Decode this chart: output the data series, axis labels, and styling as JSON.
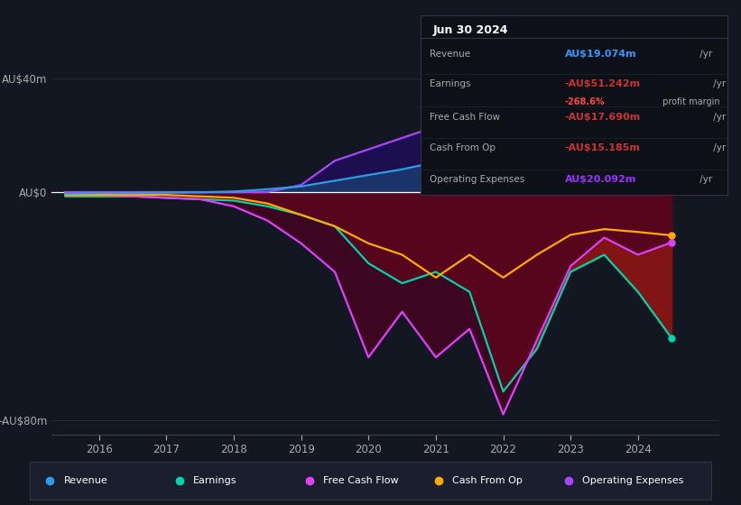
{
  "bg_color": "#131722",
  "grid_color": "#2a2e39",
  "ylim": [
    -85,
    55
  ],
  "xlim": [
    2015.3,
    2025.2
  ],
  "ytick_vals": [
    -80,
    0,
    40
  ],
  "ytick_labels": [
    "-AU$80m",
    "AU$0",
    "AU$40m"
  ],
  "xticks": [
    2016,
    2017,
    2018,
    2019,
    2020,
    2021,
    2022,
    2023,
    2024
  ],
  "revenue_x": [
    2015.5,
    2016.0,
    2016.5,
    2017.0,
    2017.5,
    2018.0,
    2018.5,
    2019.0,
    2019.5,
    2020.0,
    2020.5,
    2021.0,
    2021.5,
    2022.0,
    2022.5,
    2023.0,
    2023.5,
    2024.0,
    2024.5
  ],
  "revenue_y": [
    -0.5,
    -0.3,
    -0.3,
    -0.2,
    -0.1,
    0.2,
    1.0,
    2.0,
    4.0,
    6.0,
    8.0,
    10.5,
    12.5,
    14.5,
    16.0,
    17.5,
    18.5,
    19.0,
    19.074
  ],
  "revenue_color": "#2b9de8",
  "earnings_x": [
    2015.5,
    2016.0,
    2016.5,
    2017.0,
    2017.5,
    2018.0,
    2018.5,
    2019.0,
    2019.5,
    2020.0,
    2020.5,
    2021.0,
    2021.5,
    2022.0,
    2022.5,
    2023.0,
    2023.5,
    2024.0,
    2024.5
  ],
  "earnings_y": [
    -1.5,
    -1.5,
    -1.5,
    -2.0,
    -2.5,
    -3.0,
    -5.0,
    -8.0,
    -12.0,
    -25.0,
    -32.0,
    -28.0,
    -35.0,
    -70.0,
    -55.0,
    -28.0,
    -22.0,
    -35.0,
    -51.242
  ],
  "earnings_color": "#00d4aa",
  "fcf_x": [
    2015.5,
    2016.0,
    2016.5,
    2017.0,
    2017.5,
    2018.0,
    2018.5,
    2019.0,
    2019.5,
    2020.0,
    2020.5,
    2021.0,
    2021.5,
    2022.0,
    2022.5,
    2023.0,
    2023.5,
    2024.0,
    2024.5
  ],
  "fcf_y": [
    -1.0,
    -1.0,
    -1.5,
    -2.0,
    -2.5,
    -5.0,
    -10.0,
    -18.0,
    -28.0,
    -58.0,
    -42.0,
    -58.0,
    -48.0,
    -78.0,
    -52.0,
    -26.0,
    -16.0,
    -22.0,
    -17.69
  ],
  "fcf_color": "#e040fb",
  "cop_x": [
    2015.5,
    2016.0,
    2016.5,
    2017.0,
    2017.5,
    2018.0,
    2018.5,
    2019.0,
    2019.5,
    2020.0,
    2020.5,
    2021.0,
    2021.5,
    2022.0,
    2022.5,
    2023.0,
    2023.5,
    2024.0,
    2024.5
  ],
  "cop_y": [
    -1.0,
    -1.0,
    -1.0,
    -1.0,
    -1.5,
    -2.0,
    -4.0,
    -8.0,
    -12.0,
    -18.0,
    -22.0,
    -30.0,
    -22.0,
    -30.0,
    -22.0,
    -15.0,
    -13.0,
    -14.0,
    -15.185
  ],
  "cop_color": "#ffaa00",
  "opex_x": [
    2015.5,
    2016.0,
    2016.5,
    2017.0,
    2017.5,
    2018.0,
    2018.5,
    2019.0,
    2019.5,
    2020.0,
    2020.5,
    2021.0,
    2021.5,
    2022.0,
    2022.5,
    2023.0,
    2023.5,
    2024.0,
    2024.5
  ],
  "opex_y": [
    0.0,
    0.0,
    0.0,
    0.0,
    0.0,
    0.0,
    0.0,
    2.5,
    11.0,
    15.0,
    19.0,
    23.0,
    26.0,
    31.0,
    37.0,
    44.0,
    38.0,
    28.0,
    20.092
  ],
  "opex_color": "#aa44ff",
  "legend": [
    {
      "label": "Revenue",
      "color": "#2b9de8"
    },
    {
      "label": "Earnings",
      "color": "#00d4aa"
    },
    {
      "label": "Free Cash Flow",
      "color": "#e040fb"
    },
    {
      "label": "Cash From Op",
      "color": "#ffaa00"
    },
    {
      "label": "Operating Expenses",
      "color": "#aa44ff"
    }
  ],
  "info_date": "Jun 30 2024",
  "info_rows": [
    {
      "label": "Revenue",
      "value": "AU$19.074m",
      "vcolor": "#3399ff",
      "suffix": " /yr",
      "extra": null,
      "extra_pct": null,
      "extra_rest": null
    },
    {
      "label": "Earnings",
      "value": "-AU$51.242m",
      "vcolor": "#cc3333",
      "suffix": " /yr",
      "extra": true,
      "extra_pct": "-268.6%",
      "extra_rest": " profit margin"
    },
    {
      "label": "Free Cash Flow",
      "value": "-AU$17.690m",
      "vcolor": "#cc3333",
      "suffix": " /yr",
      "extra": null,
      "extra_pct": null,
      "extra_rest": null
    },
    {
      "label": "Cash From Op",
      "value": "-AU$15.185m",
      "vcolor": "#cc3333",
      "suffix": " /yr",
      "extra": null,
      "extra_pct": null,
      "extra_rest": null
    },
    {
      "label": "Operating Expenses",
      "value": "AU$20.092m",
      "vcolor": "#9933ff",
      "suffix": " /yr",
      "extra": null,
      "extra_pct": null,
      "extra_rest": null
    }
  ]
}
